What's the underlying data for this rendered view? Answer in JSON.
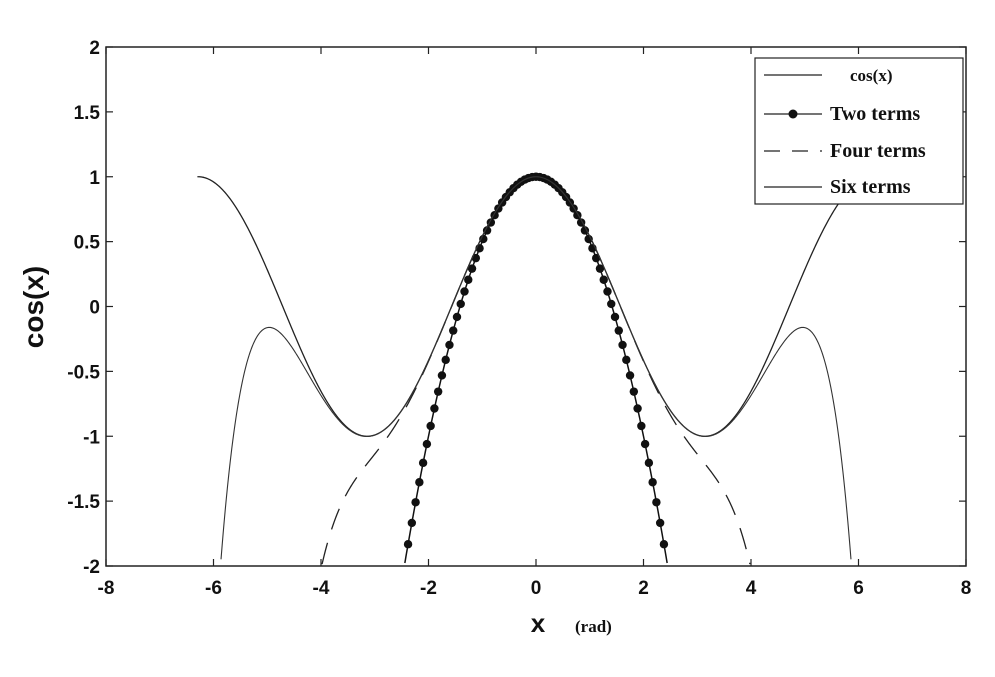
{
  "chart_data": {
    "type": "line",
    "title": "",
    "xlabel": "x",
    "xlabel_unit": "(rad)",
    "ylabel": "cos(x)",
    "xlim": [
      -8,
      8
    ],
    "ylim": [
      -2,
      2
    ],
    "x_ticks": [
      "-8",
      "-6",
      "-4",
      "-2",
      "0",
      "2",
      "4",
      "6",
      "8"
    ],
    "y_ticks": [
      "2",
      "1.5",
      "1",
      "0.5",
      "0",
      "-0.5",
      "-1",
      "-1.5",
      "-2"
    ],
    "grid": false,
    "legend_position": "top-right",
    "legend": [
      "cos(x)",
      "Two terms",
      "Four terms",
      "Six terms"
    ],
    "series": [
      {
        "name": "cos(x)",
        "style": "solid",
        "x_range": [
          -6.3,
          6.3
        ]
      },
      {
        "name": "Two terms",
        "style": "dotted-markers",
        "formula": "1 - x^2/2",
        "x_range": [
          -2.45,
          2.45
        ]
      },
      {
        "name": "Four terms",
        "style": "dashed",
        "formula": "1 - x^2/2 + x^4/24 - x^6/720",
        "x_range": [
          -4.1,
          4.1
        ]
      },
      {
        "name": "Six terms",
        "style": "thin-solid",
        "formula": "1 - x^2/2 + x^4/24 - x^6/720 + x^8/40320 - x^10/3628800",
        "x_range": [
          -5.9,
          5.9
        ]
      }
    ]
  }
}
